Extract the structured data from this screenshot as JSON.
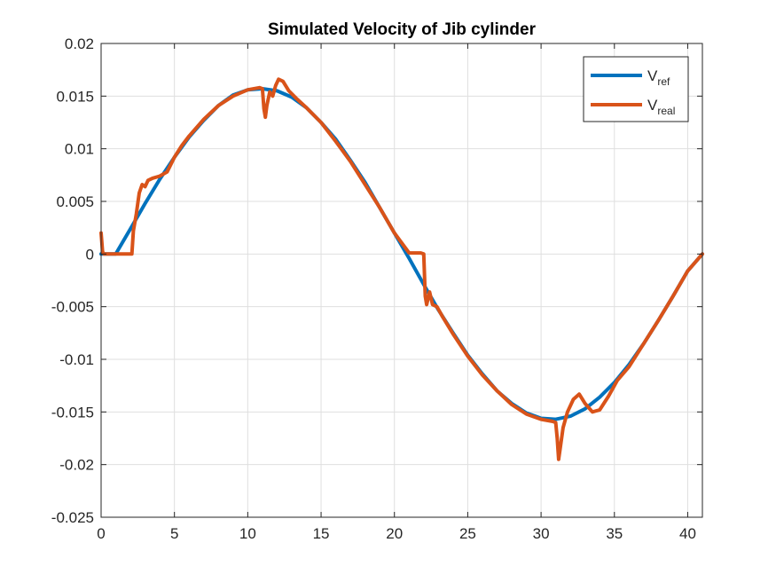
{
  "chart_data": {
    "type": "line",
    "title": "Simulated Velocity of Jib cylinder",
    "xlabel": "",
    "ylabel": "",
    "xlim": [
      0,
      41
    ],
    "ylim": [
      -0.025,
      0.02
    ],
    "x_ticks": [
      0,
      5,
      10,
      15,
      20,
      25,
      30,
      35,
      40
    ],
    "x_tick_labels": [
      "0",
      "5",
      "10",
      "15",
      "20",
      "25",
      "30",
      "35",
      "40"
    ],
    "y_ticks": [
      0.02,
      0.015,
      0.01,
      0.005,
      0,
      -0.005,
      -0.01,
      -0.015,
      -0.02,
      -0.025
    ],
    "y_tick_labels": [
      "0.02",
      "0.015",
      "0.01",
      "0.005",
      "0",
      "-0.005",
      "-0.01",
      "-0.015",
      "-0.02",
      "-0.025"
    ],
    "grid": true,
    "legend_position": "top-right",
    "series": [
      {
        "name": "V",
        "name_subscript": "ref",
        "color": "#0072BD",
        "x": [
          0,
          1,
          2,
          3,
          4,
          5,
          6,
          7,
          8,
          9,
          10,
          11,
          12,
          13,
          14,
          15,
          16,
          17,
          18,
          19,
          20,
          21,
          22,
          23,
          24,
          25,
          26,
          27,
          28,
          29,
          30,
          31,
          32,
          33,
          34,
          35,
          36,
          37,
          38,
          39,
          40,
          41
        ],
        "y": [
          0,
          0,
          0.0024,
          0.0048,
          0.0071,
          0.0092,
          0.0111,
          0.0127,
          0.0141,
          0.0151,
          0.0156,
          0.0157,
          0.0155,
          0.0149,
          0.0139,
          0.0125,
          0.0109,
          0.0089,
          0.0068,
          0.0044,
          0.002,
          -0.0004,
          -0.0029,
          -0.0053,
          -0.0075,
          -0.0096,
          -0.0114,
          -0.013,
          -0.0142,
          -0.0151,
          -0.0156,
          -0.0157,
          -0.0154,
          -0.0147,
          -0.0136,
          -0.0122,
          -0.0105,
          -0.0085,
          -0.0063,
          -0.004,
          -0.0016,
          0.0
        ]
      },
      {
        "name": "V",
        "name_subscript": "real",
        "color": "#D95319",
        "x": [
          0,
          0.1,
          0.2,
          0.5,
          1.0,
          1.5,
          2.1,
          2.2,
          2.4,
          2.6,
          2.8,
          3.0,
          3.2,
          3.5,
          4.0,
          4.5,
          5.0,
          5.5,
          6.0,
          7.0,
          8.0,
          9.0,
          10.0,
          10.8,
          11.0,
          11.1,
          11.2,
          11.3,
          11.5,
          11.7,
          11.9,
          12.1,
          12.4,
          12.8,
          13.3,
          14.0,
          15.0,
          16.0,
          17.0,
          18.0,
          19.0,
          20.0,
          21.0,
          21.8,
          22.0,
          22.1,
          22.2,
          22.4,
          22.6,
          22.9,
          23.3,
          24.0,
          25.0,
          26.0,
          27.0,
          28.0,
          29.0,
          30.0,
          30.8,
          31.0,
          31.1,
          31.2,
          31.3,
          31.5,
          31.8,
          32.2,
          32.6,
          33.0,
          33.5,
          34.0,
          34.6,
          35.2,
          36.0,
          37.0,
          38.0,
          39.0,
          40.0,
          41.0
        ],
        "y": [
          0.002,
          0.0002,
          0,
          0,
          0,
          0,
          0,
          0.0022,
          0.0038,
          0.0058,
          0.0066,
          0.0064,
          0.007,
          0.0072,
          0.0074,
          0.0078,
          0.0092,
          0.0103,
          0.0112,
          0.0128,
          0.0141,
          0.015,
          0.0156,
          0.0158,
          0.0157,
          0.0138,
          0.013,
          0.0141,
          0.0154,
          0.015,
          0.016,
          0.0166,
          0.0164,
          0.0155,
          0.0148,
          0.0139,
          0.0125,
          0.0107,
          0.0088,
          0.0066,
          0.0044,
          0.002,
          0.0001,
          0.0001,
          0.0,
          -0.004,
          -0.0048,
          -0.0036,
          -0.0048,
          -0.005,
          -0.006,
          -0.0076,
          -0.0097,
          -0.0115,
          -0.013,
          -0.0143,
          -0.0152,
          -0.0157,
          -0.0159,
          -0.016,
          -0.0175,
          -0.0195,
          -0.0185,
          -0.0165,
          -0.015,
          -0.0138,
          -0.0133,
          -0.0142,
          -0.015,
          -0.0148,
          -0.0135,
          -0.012,
          -0.0107,
          -0.0085,
          -0.0063,
          -0.004,
          -0.0016,
          0.0
        ]
      }
    ]
  }
}
